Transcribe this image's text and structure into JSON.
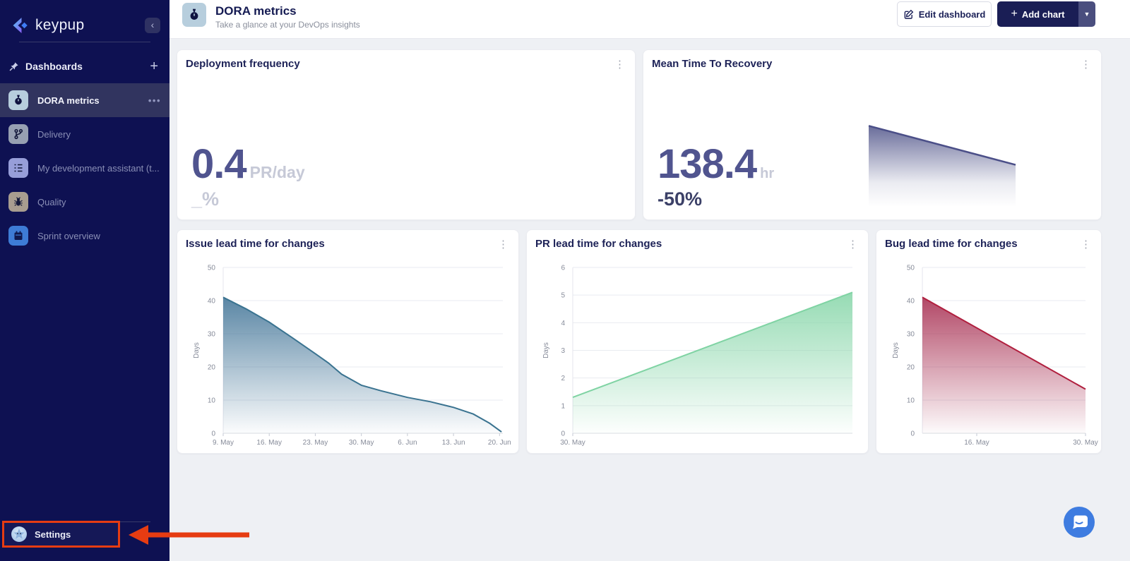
{
  "sidebar": {
    "logo_text": "keypup",
    "section_title": "Dashboards",
    "items": [
      {
        "label": "DORA metrics",
        "icon": "stopwatch-icon",
        "selected": true
      },
      {
        "label": "Delivery",
        "icon": "git-branch-icon",
        "selected": false
      },
      {
        "label": "My development assistant (t...",
        "icon": "task-list-icon",
        "selected": false
      },
      {
        "label": "Quality",
        "icon": "bug-icon",
        "selected": false
      },
      {
        "label": "Sprint overview",
        "icon": "calendar-icon",
        "selected": false
      }
    ],
    "settings_label": "Settings"
  },
  "header": {
    "icon": "stopwatch-icon",
    "title": "DORA metrics",
    "subtitle": "Take a glance at your DevOps insights",
    "edit_button_label": "Edit dashboard",
    "add_chart_label": "Add chart"
  },
  "metric_cards": [
    {
      "title": "Deployment frequency",
      "value": "0.4",
      "unit": "PR/day",
      "delta": "_%"
    },
    {
      "title": "Mean Time To Recovery",
      "value": "138.4",
      "unit": "hr",
      "delta": "-50%"
    }
  ],
  "chart_data": [
    {
      "key": "mttr-spark",
      "type": "area",
      "sparkline": true,
      "title": "Mean Time To Recovery trend",
      "x": [
        0,
        1
      ],
      "values": [
        276.8,
        138.4
      ],
      "ylim": [
        0,
        290
      ],
      "line_color": "#4b4f88",
      "fill_color": "#54588c"
    },
    {
      "key": "issue",
      "type": "area",
      "title": "Issue lead time for changes",
      "ylabel": "Days",
      "ylim": [
        0,
        50
      ],
      "yticks": [
        0,
        10,
        20,
        30,
        40,
        50
      ],
      "x_domain": [
        0,
        42.5
      ],
      "xticks": [
        {
          "x": 0,
          "label": "9. May"
        },
        {
          "x": 7,
          "label": "16. May"
        },
        {
          "x": 14,
          "label": "23. May"
        },
        {
          "x": 21,
          "label": "30. May"
        },
        {
          "x": 28,
          "label": "6. Jun"
        },
        {
          "x": 35,
          "label": "13. Jun"
        },
        {
          "x": 42,
          "label": "20. Jun"
        }
      ],
      "points": [
        [
          0,
          41
        ],
        [
          3.5,
          37.5
        ],
        [
          7,
          33.5
        ],
        [
          10.5,
          28.8
        ],
        [
          14,
          24
        ],
        [
          16,
          21.2
        ],
        [
          18,
          17.8
        ],
        [
          21,
          14.5
        ],
        [
          24,
          12.8
        ],
        [
          28,
          10.8
        ],
        [
          31.5,
          9.5
        ],
        [
          35,
          7.8
        ],
        [
          38,
          5.8
        ],
        [
          40.5,
          3
        ],
        [
          42.3,
          0.4
        ]
      ],
      "line_color": "#3a7390",
      "fill_color": "#47789a",
      "grid": true
    },
    {
      "key": "pr",
      "type": "area",
      "title": "PR lead time for changes",
      "ylabel": "Days",
      "ylim": [
        0,
        6
      ],
      "yticks": [
        0,
        1,
        2,
        3,
        4,
        5,
        6
      ],
      "x_domain": [
        0,
        13
      ],
      "xticks": [
        {
          "x": 0,
          "label": "30. May"
        }
      ],
      "points": [
        [
          0,
          1.3
        ],
        [
          13,
          5.1
        ]
      ],
      "line_color": "#7fd3a3",
      "fill_color": "#8ad7ab",
      "grid": true
    },
    {
      "key": "bug",
      "type": "area",
      "title": "Bug lead time for changes",
      "ylabel": "Days",
      "ylim": [
        0,
        50
      ],
      "yticks": [
        0,
        10,
        20,
        30,
        40,
        50
      ],
      "x_domain": [
        0,
        21
      ],
      "xticks": [
        {
          "x": 7,
          "label": "16. May"
        },
        {
          "x": 21,
          "label": "30. May"
        }
      ],
      "points": [
        [
          0,
          41
        ],
        [
          21,
          13.3
        ]
      ],
      "line_color": "#b01f3e",
      "fill_color": "#a93355",
      "grid": true
    }
  ],
  "colors": {
    "sidebar_bg": "#0e1152",
    "selected_item_bg": "#31345f",
    "accent_navy": "#1a1e55",
    "annotation_red": "#e63c12",
    "chat_bubble_blue": "#3e7ce0",
    "metric_value": "#50548f",
    "metric_muted": "#c6c9d7"
  }
}
